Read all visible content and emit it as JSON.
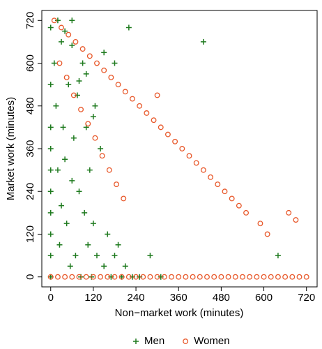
{
  "chart_data": {
    "type": "scatter",
    "x_label": "Non−market work (minutes)",
    "y_label": "Market work (minutes)",
    "xlim": [
      -25,
      750
    ],
    "ylim": [
      -28,
      748
    ],
    "xticks": [
      0,
      120,
      240,
      360,
      480,
      600,
      720
    ],
    "yticks": [
      0,
      120,
      240,
      360,
      480,
      600,
      720
    ],
    "legend": "bottom",
    "series": [
      {
        "name": "Men",
        "color": "#1e7a1e",
        "marker": "plus",
        "x": [
          0,
          0,
          0,
          0,
          0,
          0,
          0,
          0,
          0,
          0,
          10,
          15,
          20,
          25,
          30,
          30,
          35,
          40,
          45,
          50,
          55,
          60,
          60,
          65,
          70,
          75,
          80,
          85,
          90,
          95,
          100,
          105,
          110,
          115,
          120,
          125,
          130,
          140,
          150,
          160,
          170,
          180,
          190,
          200,
          210,
          230,
          250,
          280,
          310,
          430,
          640,
          20,
          40,
          60,
          80,
          100,
          120,
          150,
          180,
          220
        ],
        "values": [
          0,
          60,
          120,
          180,
          240,
          300,
          360,
          420,
          540,
          700,
          600,
          480,
          300,
          90,
          660,
          200,
          420,
          330,
          150,
          540,
          30,
          270,
          720,
          390,
          60,
          510,
          240,
          0,
          600,
          180,
          420,
          90,
          300,
          0,
          150,
          480,
          60,
          360,
          30,
          120,
          0,
          60,
          90,
          0,
          30,
          0,
          0,
          60,
          0,
          660,
          60,
          720,
          690,
          650,
          550,
          570,
          450,
          630,
          600,
          700
        ]
      },
      {
        "name": "Women",
        "color": "#e8582a",
        "marker": "circle",
        "x": [
          0,
          20,
          40,
          60,
          80,
          100,
          120,
          140,
          160,
          180,
          200,
          220,
          240,
          260,
          280,
          300,
          320,
          340,
          360,
          380,
          400,
          420,
          440,
          460,
          480,
          500,
          520,
          540,
          560,
          580,
          600,
          620,
          640,
          660,
          680,
          700,
          720,
          10,
          30,
          50,
          70,
          90,
          110,
          130,
          150,
          170,
          190,
          210,
          230,
          250,
          270,
          290,
          310,
          330,
          350,
          370,
          390,
          410,
          430,
          450,
          470,
          490,
          510,
          530,
          550,
          590,
          610,
          670,
          690,
          25,
          45,
          65,
          85,
          105,
          125,
          145,
          165,
          185,
          205,
          300
        ],
        "values": [
          0,
          0,
          0,
          0,
          0,
          0,
          0,
          0,
          0,
          0,
          0,
          0,
          0,
          0,
          0,
          0,
          0,
          0,
          0,
          0,
          0,
          0,
          0,
          0,
          0,
          0,
          0,
          0,
          0,
          0,
          0,
          0,
          0,
          0,
          0,
          0,
          0,
          720,
          700,
          680,
          660,
          640,
          620,
          600,
          580,
          560,
          540,
          520,
          500,
          480,
          460,
          440,
          420,
          400,
          380,
          360,
          340,
          320,
          300,
          280,
          260,
          240,
          220,
          200,
          180,
          150,
          120,
          180,
          160,
          600,
          560,
          510,
          470,
          430,
          390,
          340,
          300,
          260,
          220,
          510
        ]
      }
    ]
  }
}
